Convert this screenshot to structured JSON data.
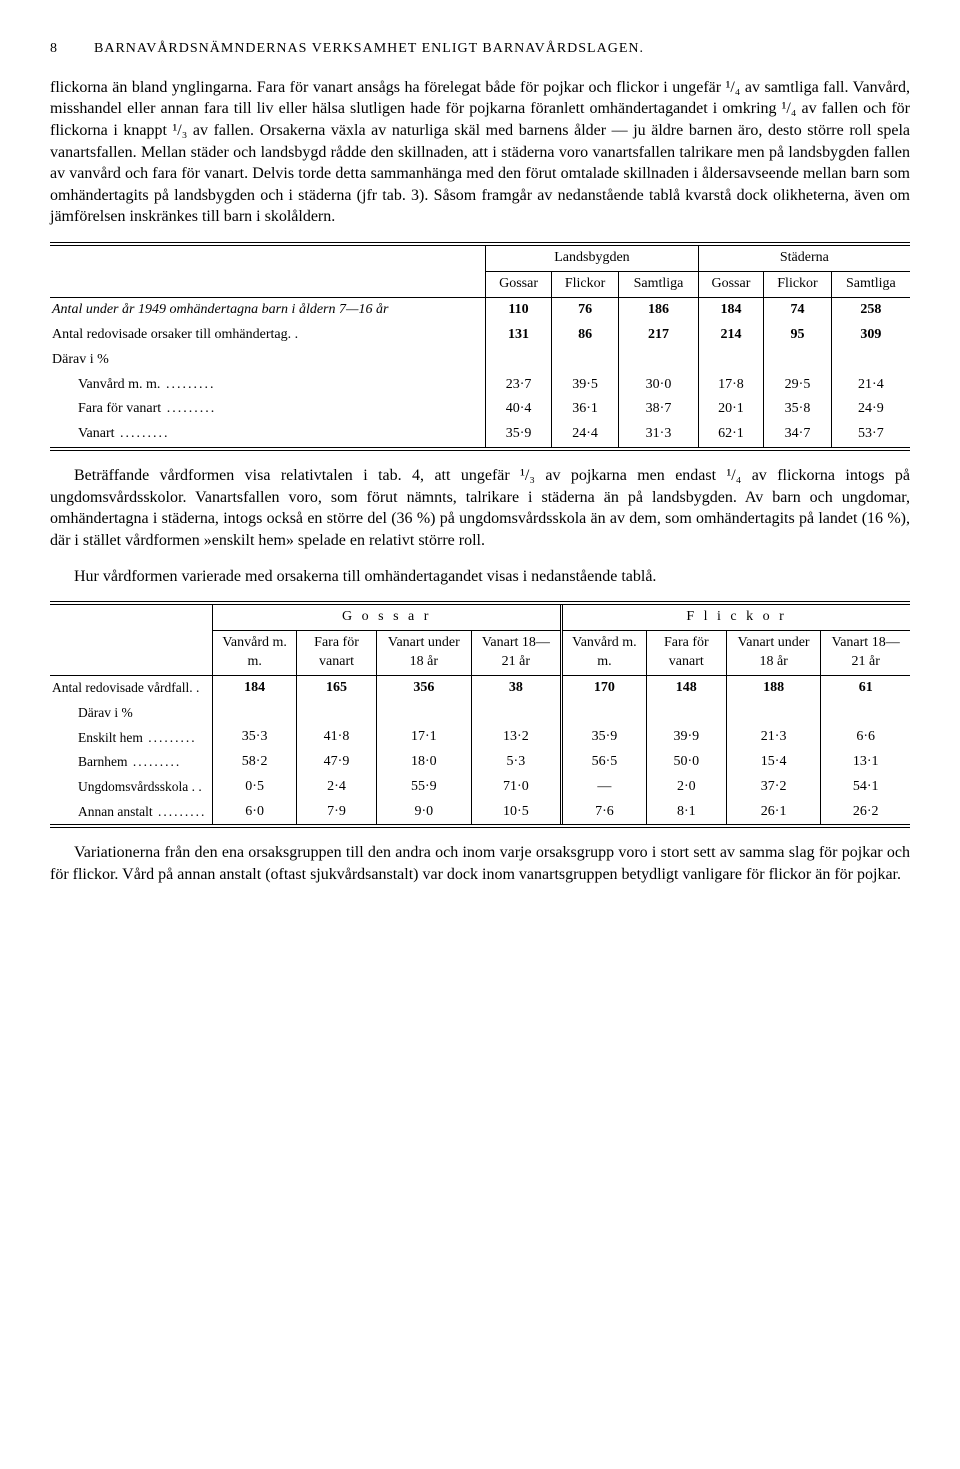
{
  "header": {
    "page": "8",
    "title": "BARNAVÅRDSNÄMNDERNAS VERKSAMHET ENLIGT BARNAVÅRDSLAGEN."
  },
  "para1": "flickorna än bland ynglingarna. Fara för vanart ansågs ha förelegat både för pojkar och flickor i ungefär ¹/₄ av samtliga fall. Vanvård, misshandel eller annan fara till liv eller hälsa slutligen hade för pojkarna föranlett omhändertagandet i omkring ¹/₄ av fallen och för flickorna i knappt ¹/₃ av fallen. Orsakerna växla av naturliga skäl med barnens ålder — ju äldre barnen äro, desto större roll spela vanartsfallen. Mellan städer och landsbygd rådde den skillnaden, att i städerna voro vanartsfallen talrikare men på landsbygden fallen av vanvård och fara för vanart. Delvis torde detta sammanhänga med den förut omtalade skillnaden i åldersavseende mellan barn som omhändertagits på landsbygden och i städerna (jfr tab. 3). Såsom framgår av nedanstående tablå kvarstå dock olikheterna, även om jämförelsen inskränkes till barn i skolåldern.",
  "table1": {
    "group1": "Landsbygden",
    "group2": "Städerna",
    "cols": [
      "Gossar",
      "Flickor",
      "Samtliga",
      "Gossar",
      "Flickor",
      "Samtliga"
    ],
    "rows": [
      {
        "label": "Antal under år 1949 omhändertagna barn i åldern 7—16 år",
        "indent": false,
        "italic": true,
        "bold": true,
        "vals": [
          "110",
          "76",
          "186",
          "184",
          "74",
          "258"
        ]
      },
      {
        "label": "Antal redovisade orsaker till omhändertag. .",
        "indent": false,
        "bold": true,
        "vals": [
          "131",
          "86",
          "217",
          "214",
          "95",
          "309"
        ]
      },
      {
        "label": "Därav i %",
        "indent": false,
        "bold": false,
        "vals": [
          "",
          "",
          "",
          "",
          "",
          ""
        ]
      },
      {
        "label": "Vanvård m. m.",
        "indent": true,
        "bold": false,
        "dots": true,
        "vals": [
          "23·7",
          "39·5",
          "30·0",
          "17·8",
          "29·5",
          "21·4"
        ]
      },
      {
        "label": "Fara för vanart",
        "indent": true,
        "bold": false,
        "dots": true,
        "vals": [
          "40·4",
          "36·1",
          "38·7",
          "20·1",
          "35·8",
          "24·9"
        ]
      },
      {
        "label": "Vanart",
        "indent": true,
        "bold": false,
        "dots": true,
        "vals": [
          "35·9",
          "24·4",
          "31·3",
          "62·1",
          "34·7",
          "53·7"
        ]
      }
    ]
  },
  "para2": "Beträffande vårdformen visa relativtalen i tab. 4, att ungefär ¹/₃ av pojkarna men endast ¹/₄ av flickorna intogs på ungdomsvårdsskolor. Vanartsfallen voro, som förut nämnts, talrikare i städerna än på landsbygden. Av barn och ungdomar, omhändertagna i städerna, intogs också en större del (36 %) på ungdomsvårdsskola än av dem, som omhändertagits på landet (16 %), där i stället vårdformen »enskilt hem» spelade en relativt större roll.",
  "para3": "Hur vårdformen varierade med orsakerna till omhändertagandet visas i nedanstående tablå.",
  "table2": {
    "group1": "G o s s a r",
    "group2": "F l i c k o r",
    "cols": [
      "Vanvård m. m.",
      "Fara för vanart",
      "Vanart under 18 år",
      "Vanart 18—21 år",
      "Vanvård m. m.",
      "Fara för vanart",
      "Vanart under 18 år",
      "Vanart 18—21 år"
    ],
    "rows": [
      {
        "label": "Antal redovisade vårdfall. .",
        "indent": false,
        "bold": true,
        "vals": [
          "184",
          "165",
          "356",
          "38",
          "170",
          "148",
          "188",
          "61"
        ]
      },
      {
        "label": "Därav i %",
        "indent": true,
        "bold": false,
        "vals": [
          "",
          "",
          "",
          "",
          "",
          "",
          "",
          ""
        ]
      },
      {
        "label": "Enskilt hem",
        "indent": true,
        "bold": false,
        "dots": true,
        "vals": [
          "35·3",
          "41·8",
          "17·1",
          "13·2",
          "35·9",
          "39·9",
          "21·3",
          "6·6"
        ]
      },
      {
        "label": "Barnhem",
        "indent": true,
        "bold": false,
        "dots": true,
        "vals": [
          "58·2",
          "47·9",
          "18·0",
          "5·3",
          "56·5",
          "50·0",
          "15·4",
          "13·1"
        ]
      },
      {
        "label": "Ungdomsvårdsskola . .",
        "indent": true,
        "bold": false,
        "vals": [
          "0·5",
          "2·4",
          "55·9",
          "71·0",
          "—",
          "2·0",
          "37·2",
          "54·1"
        ]
      },
      {
        "label": "Annan anstalt",
        "indent": true,
        "bold": false,
        "dots": true,
        "vals": [
          "6·0",
          "7·9",
          "9·0",
          "10·5",
          "7·6",
          "8·1",
          "26·1",
          "26·2"
        ]
      }
    ]
  },
  "para4": "Variationerna från den ena orsaksgruppen till den andra och inom varje orsaksgrupp voro i stort sett av samma slag för pojkar och för flickor. Vård på annan anstalt (oftast sjukvårdsanstalt) var dock inom vanartsgruppen betydligt vanligare för flickor än för pojkar."
}
